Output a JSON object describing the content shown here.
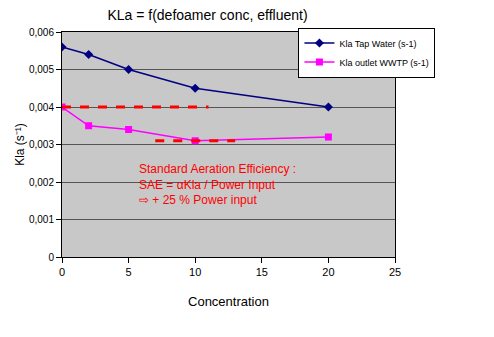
{
  "chart_data": {
    "type": "line",
    "title": "KLa = f(defoamer conc, effluent)",
    "x_label": "Concentration",
    "y_label": "Kla (s⁻¹)",
    "x": [
      0,
      2,
      5,
      10,
      20
    ],
    "series": [
      {
        "name": "Kla Tap Water (s-1)",
        "color": "#000080",
        "marker": "diamond",
        "values": [
          0.0056,
          0.0054,
          0.005,
          0.0045,
          0.004
        ]
      },
      {
        "name": "Kla outlet WWTP (s-1)",
        "color": "#ff00ff",
        "marker": "square",
        "values": [
          0.004,
          0.0035,
          0.0034,
          0.0031,
          0.0032
        ]
      }
    ],
    "reference_lines": [
      {
        "x": [
          0,
          11
        ],
        "y": 0.004,
        "color": "#ff0000",
        "line_style": "dash"
      },
      {
        "x": [
          7,
          13
        ],
        "y": 0.0031,
        "color": "#ff0000",
        "line_style": "dash"
      }
    ],
    "annotations": [
      {
        "lines": [
          "Standard Aeration Efficiency :",
          "SAE = αKla / Power Input",
          "⇨ + 25 % Power input"
        ],
        "color": "#ff0000"
      }
    ],
    "xlim": [
      0,
      25
    ],
    "xticks": [
      0,
      5,
      10,
      15,
      20,
      25
    ],
    "ylim": [
      0,
      0.006
    ],
    "yticks": [
      0,
      {
        "value": 0.001,
        "label": "0,001"
      },
      {
        "value": 0.002,
        "label": "0,002"
      },
      {
        "value": 0.003,
        "label": "0,003"
      },
      {
        "value": 0.004,
        "label": "0,004"
      },
      {
        "value": 0.005,
        "label": "0,005"
      },
      {
        "value": 0.006,
        "label": "0,006"
      }
    ],
    "grid": true,
    "legend": "upper right"
  }
}
